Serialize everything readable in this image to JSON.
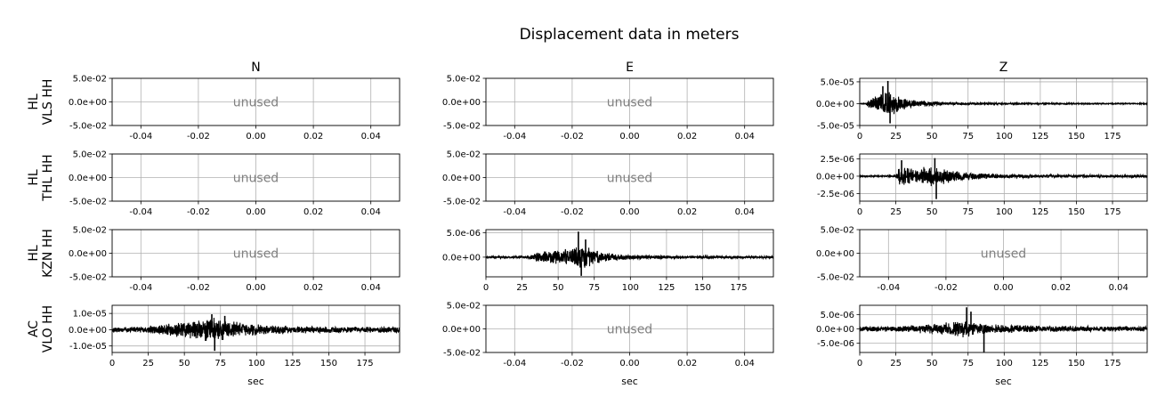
{
  "title": "Displacement data in meters",
  "columns": [
    "N",
    "E",
    "Z"
  ],
  "rows": [
    {
      "line1": "HL",
      "line2": "VLS HH"
    },
    {
      "line1": "HL",
      "line2": "THL HH"
    },
    {
      "line1": "HL",
      "line2": "KZN HH"
    },
    {
      "line1": "AC",
      "line2": "VLO HH"
    }
  ],
  "xlabel": "sec",
  "unused_label": "unused",
  "colors": {
    "trace": "#000000",
    "grid": "#b0b0b0",
    "unused_text": "#808080"
  },
  "chart_data": [
    {
      "row": 0,
      "col": 0,
      "type": "line",
      "unused": true,
      "xlim": [
        -0.05,
        0.05
      ],
      "ylim": [
        -0.05,
        0.05
      ],
      "xticks": [
        -0.04,
        -0.02,
        0.0,
        0.02,
        0.04
      ],
      "xticklabels": [
        "-0.04",
        "-0.02",
        "0.00",
        "0.02",
        "0.04"
      ],
      "yticks": [
        0.05,
        0.0,
        -0.05
      ],
      "yticklabels": [
        "5.0e-02",
        "0.0e+00",
        "-5.0e-02"
      ],
      "grid": true
    },
    {
      "row": 0,
      "col": 1,
      "type": "line",
      "unused": true,
      "xlim": [
        -0.05,
        0.05
      ],
      "ylim": [
        -0.05,
        0.05
      ],
      "xticks": [
        -0.04,
        -0.02,
        0.0,
        0.02,
        0.04
      ],
      "xticklabels": [
        "-0.04",
        "-0.02",
        "0.00",
        "0.02",
        "0.04"
      ],
      "yticks": [
        0.05,
        0.0,
        -0.05
      ],
      "yticklabels": [
        "5.0e-02",
        "0.0e+00",
        "-5.0e-02"
      ],
      "grid": true
    },
    {
      "row": 0,
      "col": 2,
      "type": "line",
      "unused": false,
      "xlim": [
        0,
        199
      ],
      "ylim": [
        -5e-05,
        5.8e-05
      ],
      "xticks": [
        0,
        25,
        50,
        75,
        100,
        125,
        150,
        175
      ],
      "xticklabels": [
        "0",
        "25",
        "50",
        "75",
        "100",
        "125",
        "150",
        "175"
      ],
      "yticks": [
        5e-05,
        0.0,
        -5e-05
      ],
      "yticklabels": [
        "5.0e-05",
        "0.0e+00",
        "-5.0e-05"
      ],
      "grid": true,
      "envelope": [
        [
          0,
          1e-06
        ],
        [
          4,
          1.5e-06
        ],
        [
          6,
          1e-05
        ],
        [
          10,
          1.6e-05
        ],
        [
          14,
          2.2e-05
        ],
        [
          17,
          3e-05
        ],
        [
          20,
          3.8e-05
        ],
        [
          22,
          3.2e-05
        ],
        [
          25,
          2.2e-05
        ],
        [
          30,
          1.4e-05
        ],
        [
          40,
          8e-06
        ],
        [
          60,
          4e-06
        ],
        [
          80,
          2.5e-06
        ],
        [
          100,
          2e-06
        ],
        [
          150,
          1.5e-06
        ],
        [
          199,
          1.4e-06
        ]
      ],
      "peaks": [
        [
          19.5,
          5.2e-05
        ],
        [
          21,
          -4.5e-05
        ],
        [
          16,
          4e-05
        ]
      ]
    },
    {
      "row": 1,
      "col": 0,
      "type": "line",
      "unused": true,
      "xlim": [
        -0.05,
        0.05
      ],
      "ylim": [
        -0.05,
        0.05
      ],
      "xticks": [
        -0.04,
        -0.02,
        0.0,
        0.02,
        0.04
      ],
      "xticklabels": [
        "-0.04",
        "-0.02",
        "0.00",
        "0.02",
        "0.04"
      ],
      "yticks": [
        0.05,
        0.0,
        -0.05
      ],
      "yticklabels": [
        "5.0e-02",
        "0.0e+00",
        "-5.0e-02"
      ],
      "grid": true
    },
    {
      "row": 1,
      "col": 1,
      "type": "line",
      "unused": true,
      "xlim": [
        -0.05,
        0.05
      ],
      "ylim": [
        -0.05,
        0.05
      ],
      "xticks": [
        -0.04,
        -0.02,
        0.0,
        0.02,
        0.04
      ],
      "xticklabels": [
        "-0.04",
        "-0.02",
        "0.00",
        "0.02",
        "0.04"
      ],
      "yticks": [
        0.05,
        0.0,
        -0.05
      ],
      "yticklabels": [
        "5.0e-02",
        "0.0e+00",
        "-5.0e-02"
      ],
      "grid": true
    },
    {
      "row": 1,
      "col": 2,
      "type": "line",
      "unused": false,
      "xlim": [
        0,
        199
      ],
      "ylim": [
        -3.6e-06,
        3.2e-06
      ],
      "xticks": [
        0,
        25,
        50,
        75,
        100,
        125,
        150,
        175
      ],
      "xticklabels": [
        "0",
        "25",
        "50",
        "75",
        "100",
        "125",
        "150",
        "175"
      ],
      "yticks": [
        2.5e-06,
        0.0,
        -2.5e-06
      ],
      "yticklabels": [
        "2.5e-06",
        "0.0e+00",
        "-2.5e-06"
      ],
      "grid": true,
      "envelope": [
        [
          0,
          1e-07
        ],
        [
          25,
          1.5e-07
        ],
        [
          27,
          1.3e-06
        ],
        [
          32,
          1.5e-06
        ],
        [
          40,
          1e-06
        ],
        [
          45,
          1.4e-06
        ],
        [
          50,
          1.6e-06
        ],
        [
          55,
          1.3e-06
        ],
        [
          65,
          9e-07
        ],
        [
          80,
          5e-07
        ],
        [
          100,
          3e-07
        ],
        [
          150,
          2.2e-07
        ],
        [
          199,
          2e-07
        ]
      ],
      "peaks": [
        [
          53,
          -3.3e-06
        ],
        [
          52,
          2.6e-06
        ],
        [
          29,
          2.3e-06
        ]
      ]
    },
    {
      "row": 2,
      "col": 0,
      "type": "line",
      "unused": true,
      "xlim": [
        -0.05,
        0.05
      ],
      "ylim": [
        -0.05,
        0.05
      ],
      "xticks": [
        -0.04,
        -0.02,
        0.0,
        0.02,
        0.04
      ],
      "xticklabels": [
        "-0.04",
        "-0.02",
        "0.00",
        "0.02",
        "0.04"
      ],
      "yticks": [
        0.05,
        0.0,
        -0.05
      ],
      "yticklabels": [
        "5.0e-02",
        "0.0e+00",
        "-5.0e-02"
      ],
      "grid": true
    },
    {
      "row": 2,
      "col": 1,
      "type": "line",
      "unused": false,
      "xlim": [
        0,
        199
      ],
      "ylim": [
        -4e-06,
        5.6e-06
      ],
      "xticks": [
        0,
        25,
        50,
        75,
        100,
        125,
        150,
        175
      ],
      "xticklabels": [
        "0",
        "25",
        "50",
        "75",
        "100",
        "125",
        "150",
        "175"
      ],
      "yticks": [
        5e-06,
        0.0
      ],
      "yticklabels": [
        "5.0e-06",
        "0.0e+00"
      ],
      "grid": true,
      "envelope": [
        [
          0,
          2e-07
        ],
        [
          30,
          3e-07
        ],
        [
          33,
          8e-07
        ],
        [
          40,
          1.2e-06
        ],
        [
          50,
          1.6e-06
        ],
        [
          60,
          2.2e-06
        ],
        [
          65,
          2.6e-06
        ],
        [
          72,
          2e-06
        ],
        [
          80,
          1.2e-06
        ],
        [
          90,
          7e-07
        ],
        [
          110,
          4e-07
        ],
        [
          150,
          3e-07
        ],
        [
          199,
          2.5e-07
        ]
      ],
      "peaks": [
        [
          64,
          5.2e-06
        ],
        [
          66,
          -3.8e-06
        ],
        [
          69,
          3.6e-06
        ]
      ]
    },
    {
      "row": 2,
      "col": 2,
      "type": "line",
      "unused": true,
      "xlim": [
        -0.05,
        0.05
      ],
      "ylim": [
        -0.05,
        0.05
      ],
      "xticks": [
        -0.04,
        -0.02,
        0.0,
        0.02,
        0.04
      ],
      "xticklabels": [
        "-0.04",
        "-0.02",
        "0.00",
        "0.02",
        "0.04"
      ],
      "yticks": [
        0.05,
        0.0,
        -0.05
      ],
      "yticklabels": [
        "5.0e-02",
        "0.0e+00",
        "-5.0e-02"
      ],
      "grid": true
    },
    {
      "row": 3,
      "col": 0,
      "type": "line",
      "unused": false,
      "xlim": [
        0,
        199
      ],
      "ylim": [
        -1.4e-05,
        1.5e-05
      ],
      "xticks": [
        0,
        25,
        50,
        75,
        100,
        125,
        150,
        175
      ],
      "xticklabels": [
        "0",
        "25",
        "50",
        "75",
        "100",
        "125",
        "150",
        "175"
      ],
      "yticks": [
        1e-05,
        0.0,
        -1e-05
      ],
      "yticklabels": [
        "1.0e-05",
        "0.0e+00",
        "-1.0e-05"
      ],
      "grid": true,
      "envelope": [
        [
          0,
          1.5e-06
        ],
        [
          20,
          2e-06
        ],
        [
          35,
          3.5e-06
        ],
        [
          50,
          5e-06
        ],
        [
          60,
          6.5e-06
        ],
        [
          68,
          8e-06
        ],
        [
          75,
          7e-06
        ],
        [
          90,
          4.5e-06
        ],
        [
          110,
          3e-06
        ],
        [
          140,
          2.2e-06
        ],
        [
          170,
          2e-06
        ],
        [
          199,
          2e-06
        ]
      ],
      "peaks": [
        [
          71,
          -1.3e-05
        ],
        [
          69,
          9.5e-06
        ],
        [
          78,
          8.5e-06
        ]
      ]
    },
    {
      "row": 3,
      "col": 1,
      "type": "line",
      "unused": true,
      "xlim": [
        -0.05,
        0.05
      ],
      "ylim": [
        -0.05,
        0.05
      ],
      "xticks": [
        -0.04,
        -0.02,
        0.0,
        0.02,
        0.04
      ],
      "xticklabels": [
        "-0.04",
        "-0.02",
        "0.00",
        "0.02",
        "0.04"
      ],
      "yticks": [
        0.05,
        0.0,
        -0.05
      ],
      "yticklabels": [
        "5.0e-02",
        "0.0e+00",
        "-5.0e-02"
      ],
      "grid": true
    },
    {
      "row": 3,
      "col": 2,
      "type": "line",
      "unused": false,
      "xlim": [
        0,
        199
      ],
      "ylim": [
        -8.2e-06,
        8.2e-06
      ],
      "xticks": [
        0,
        25,
        50,
        75,
        100,
        125,
        150,
        175
      ],
      "xticklabels": [
        "0",
        "25",
        "50",
        "75",
        "100",
        "125",
        "150",
        "175"
      ],
      "yticks": [
        5e-06,
        0.0,
        -5e-06
      ],
      "yticklabels": [
        "5.0e-06",
        "0.0e+00",
        "-5.0e-06"
      ],
      "grid": true,
      "envelope": [
        [
          0,
          9e-07
        ],
        [
          20,
          1e-06
        ],
        [
          35,
          1.3e-06
        ],
        [
          50,
          1.8e-06
        ],
        [
          62,
          2.5e-06
        ],
        [
          72,
          3.3e-06
        ],
        [
          80,
          2.6e-06
        ],
        [
          95,
          1.6e-06
        ],
        [
          120,
          1.2e-06
        ],
        [
          160,
          1e-06
        ],
        [
          199,
          1e-06
        ]
      ],
      "peaks": [
        [
          74,
          7.5e-06
        ],
        [
          86,
          -8.1e-06
        ],
        [
          77,
          6e-06
        ]
      ]
    }
  ]
}
